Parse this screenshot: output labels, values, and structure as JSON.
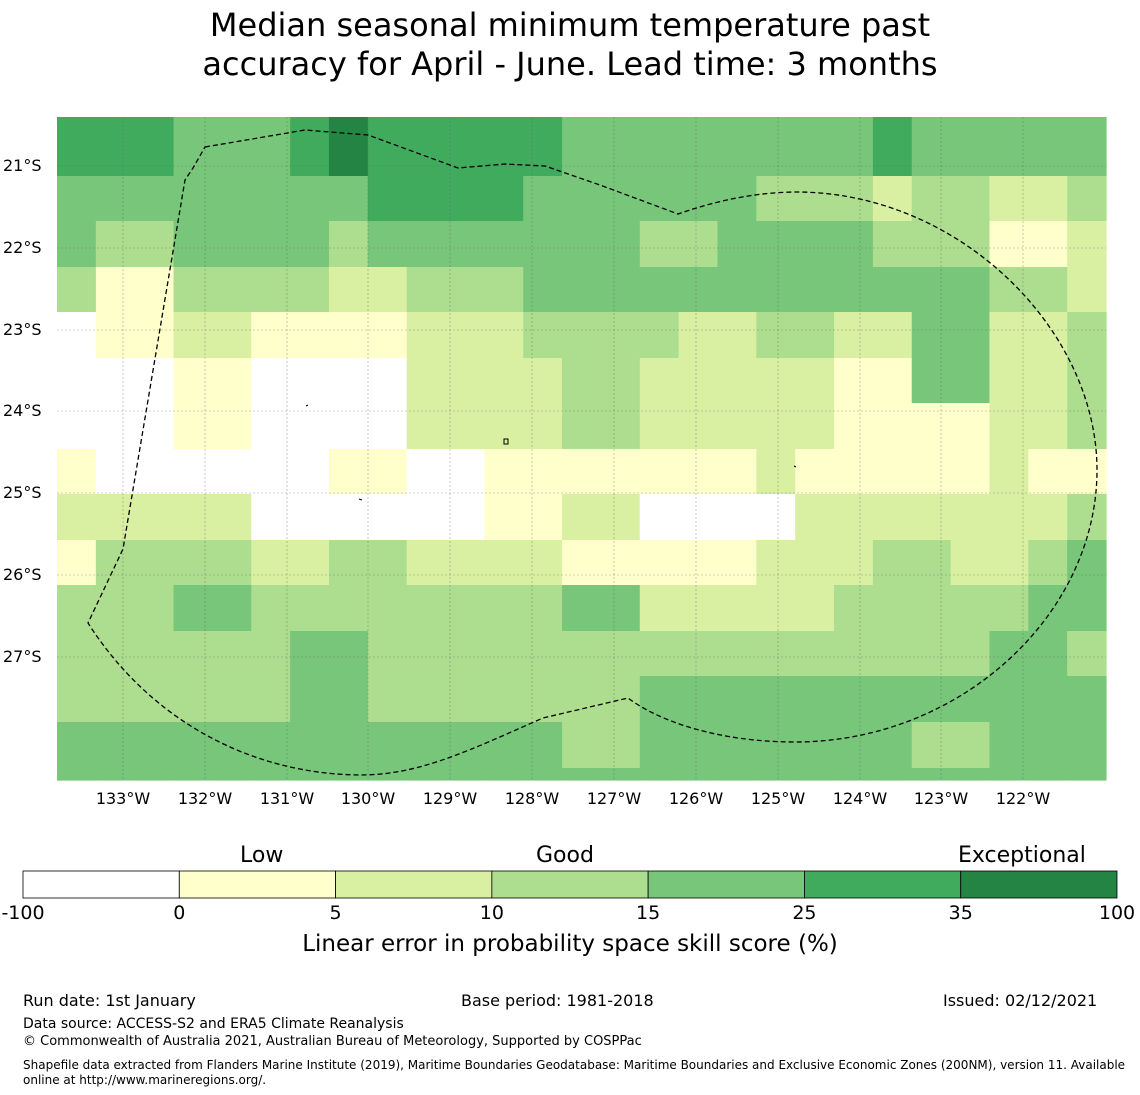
{
  "title_line1": "Median seasonal minimum temperature past",
  "title_line2": "accuracy for April - June. Lead time: 3 months",
  "map": {
    "lat_labels": [
      "21°S",
      "22°S",
      "23°S",
      "24°S",
      "25°S",
      "26°S",
      "27°S"
    ],
    "lon_labels": [
      "133°W",
      "132°W",
      "131°W",
      "130°W",
      "129°W",
      "128°W",
      "127°W",
      "126°W",
      "125°W",
      "124°W",
      "123°W",
      "122°W"
    ],
    "palette": [
      "#ffffff",
      "#ffffcc",
      "#d9f0a3",
      "#addd8e",
      "#78c679",
      "#41ab5d",
      "#238443"
    ],
    "grid": [
      [
        5,
        5,
        5,
        4,
        4,
        4,
        5,
        6,
        5,
        5,
        5,
        5,
        5,
        4,
        4,
        4,
        4,
        4,
        4,
        4,
        4,
        5,
        4,
        4,
        4,
        4,
        4
      ],
      [
        5,
        5,
        5,
        4,
        4,
        4,
        5,
        6,
        5,
        5,
        5,
        5,
        5,
        4,
        4,
        4,
        4,
        4,
        4,
        4,
        4,
        5,
        4,
        4,
        4,
        4,
        4
      ],
      [
        4,
        4,
        4,
        4,
        4,
        4,
        4,
        4,
        5,
        5,
        5,
        5,
        4,
        4,
        4,
        4,
        4,
        4,
        3,
        3,
        3,
        2,
        3,
        3,
        2,
        2,
        3
      ],
      [
        4,
        3,
        3,
        4,
        4,
        4,
        4,
        3,
        4,
        4,
        4,
        4,
        4,
        4,
        4,
        3,
        3,
        4,
        4,
        4,
        4,
        3,
        3,
        3,
        1,
        1,
        2
      ],
      [
        3,
        1,
        1,
        3,
        3,
        3,
        3,
        2,
        2,
        3,
        3,
        3,
        4,
        4,
        4,
        4,
        4,
        4,
        4,
        4,
        4,
        4,
        4,
        4,
        3,
        3,
        2
      ],
      [
        0,
        1,
        1,
        2,
        2,
        1,
        1,
        1,
        1,
        2,
        2,
        2,
        3,
        3,
        3,
        3,
        2,
        2,
        3,
        3,
        2,
        2,
        4,
        4,
        2,
        2,
        3
      ],
      [
        0,
        0,
        0,
        1,
        1,
        0,
        0,
        0,
        0,
        2,
        2,
        2,
        2,
        3,
        3,
        2,
        2,
        2,
        2,
        2,
        1,
        1,
        4,
        4,
        2,
        2,
        3
      ],
      [
        0,
        0,
        0,
        1,
        1,
        0,
        0,
        0,
        0,
        2,
        2,
        2,
        2,
        3,
        3,
        2,
        2,
        2,
        2,
        2,
        1,
        1,
        1,
        1,
        2,
        2,
        3
      ],
      [
        1,
        0,
        0,
        0,
        0,
        0,
        0,
        1,
        1,
        0,
        0,
        1,
        1,
        1,
        1,
        1,
        1,
        1,
        2,
        1,
        1,
        1,
        1,
        1,
        2,
        1,
        1
      ],
      [
        2,
        2,
        2,
        2,
        2,
        0,
        0,
        0,
        0,
        0,
        0,
        1,
        1,
        2,
        2,
        0,
        0,
        0,
        0,
        2,
        2,
        2,
        2,
        2,
        2,
        2,
        3
      ],
      [
        1,
        3,
        3,
        3,
        3,
        2,
        2,
        3,
        3,
        2,
        2,
        2,
        2,
        1,
        1,
        1,
        1,
        1,
        2,
        2,
        2,
        3,
        3,
        2,
        2,
        3,
        4
      ],
      [
        3,
        3,
        3,
        4,
        4,
        3,
        3,
        3,
        3,
        3,
        3,
        3,
        3,
        4,
        4,
        2,
        2,
        2,
        2,
        2,
        3,
        3,
        3,
        3,
        3,
        4,
        4
      ],
      [
        3,
        3,
        3,
        3,
        3,
        3,
        4,
        4,
        3,
        3,
        3,
        3,
        3,
        3,
        3,
        3,
        3,
        3,
        3,
        3,
        3,
        3,
        3,
        3,
        4,
        4,
        3
      ],
      [
        3,
        3,
        3,
        3,
        3,
        3,
        4,
        4,
        3,
        3,
        3,
        3,
        3,
        3,
        3,
        4,
        4,
        4,
        4,
        4,
        4,
        4,
        4,
        4,
        4,
        4,
        4
      ],
      [
        4,
        4,
        4,
        4,
        4,
        4,
        4,
        4,
        4,
        4,
        4,
        4,
        4,
        3,
        3,
        4,
        4,
        4,
        4,
        4,
        4,
        4,
        3,
        3,
        4,
        4,
        4
      ],
      [
        4,
        4,
        4,
        4,
        4,
        4,
        4,
        4,
        4,
        4,
        4,
        4,
        4,
        4,
        4,
        4,
        4,
        4,
        4,
        4,
        4,
        4,
        4,
        4,
        4,
        4,
        4
      ],
      [
        4,
        4,
        4,
        4,
        4,
        4,
        4,
        4,
        4,
        4,
        4,
        4,
        4,
        4,
        4,
        4,
        4,
        4,
        4,
        4,
        4,
        4,
        4,
        4,
        4,
        4,
        4
      ]
    ]
  },
  "colorbar": {
    "categories": [
      "Low",
      "Good",
      "Exceptional"
    ],
    "ticks": [
      "-100",
      "0",
      "5",
      "10",
      "15",
      "25",
      "35",
      "100"
    ],
    "colors": [
      "#ffffff",
      "#ffffcc",
      "#d9f0a3",
      "#addd8e",
      "#78c679",
      "#41ab5d",
      "#238443"
    ],
    "title": "Linear error in probability space skill score (%)"
  },
  "footer": {
    "run_date": "Run date: 1st January",
    "base_period": "Base period: 1981-2018",
    "issued": "Issued: 02/12/2021",
    "data_source": "Data source: ACCESS-S2 and ERA5 Climate Reanalysis",
    "copyright": "© Commonwealth of Australia 2021, Australian Bureau of Meteorology, Supported by COSPPac",
    "shapefile_line1": "Shapefile data extracted from Flanders Marine Institute (2019), Maritime Boundaries Geodatabase: Maritime Boundaries and Exclusive Economic Zones (200NM), version 11. Available",
    "shapefile_line2": "online at http://www.marineregions.org/."
  }
}
